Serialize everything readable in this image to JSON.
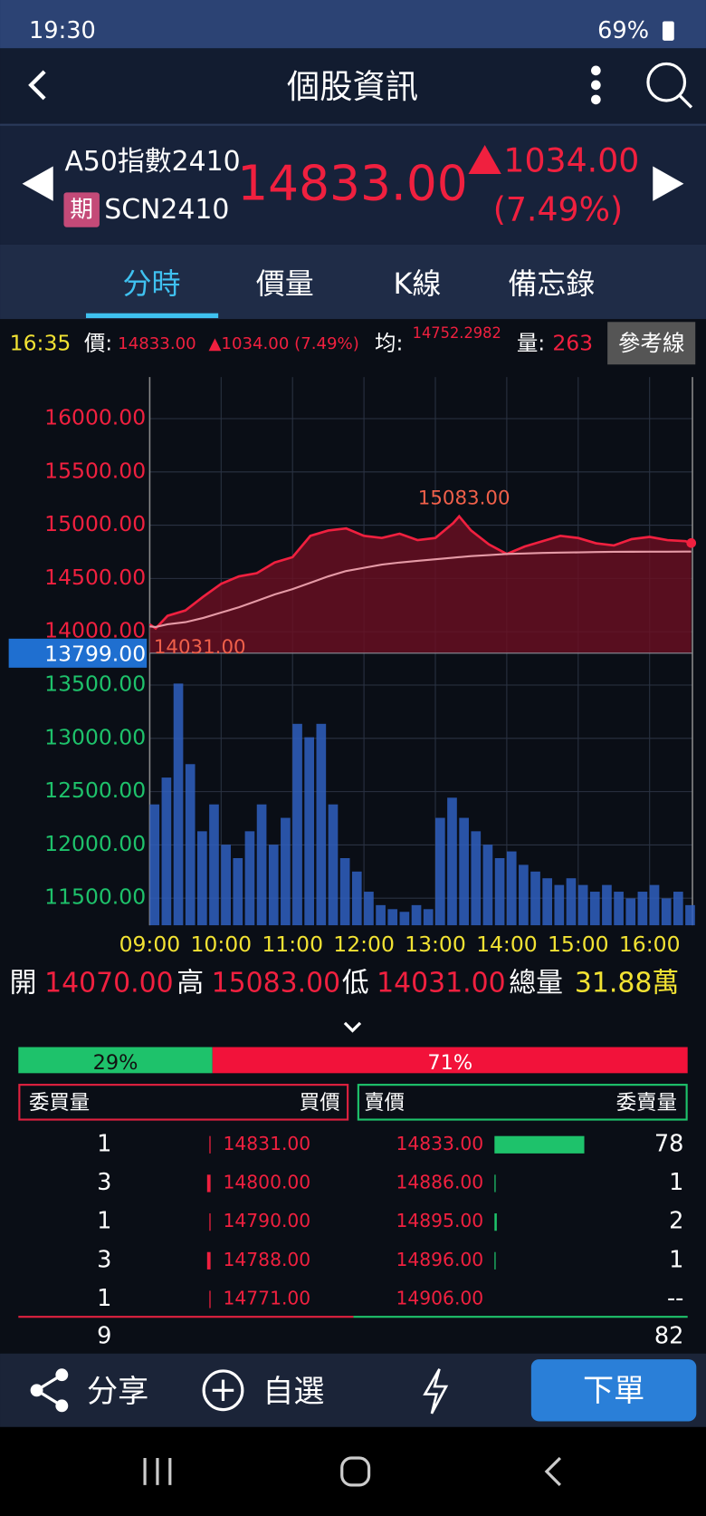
{
  "status_bar": {
    "time": "19:30",
    "battery": "69%"
  },
  "header": {
    "title": "個股資訊"
  },
  "quote": {
    "name": "A50指數2410",
    "badge": "期",
    "code": "SCN2410",
    "price": "14833.00",
    "change": "1034.00",
    "change_pct": "(7.49%)"
  },
  "tabs": [
    "分時",
    "價量",
    "K線",
    "備忘錄"
  ],
  "info_bar": {
    "time": "16:35",
    "price_label": "價:",
    "price": "14833.00",
    "change": "▲1034.00 (7.49%)",
    "avg_label": "均:",
    "avg": "14752.2982",
    "vol_label": "量:",
    "vol": "263",
    "button": "參考線"
  },
  "chart_data": [
    {
      "type": "line",
      "x": [
        "09:00",
        "09:05",
        "09:15",
        "09:30",
        "09:45",
        "10:00",
        "10:15",
        "10:30",
        "10:45",
        "11:00",
        "11:15",
        "11:30",
        "11:45",
        "12:00",
        "12:15",
        "12:30",
        "12:45",
        "13:00",
        "13:15",
        "13:20",
        "13:30",
        "13:45",
        "14:00",
        "14:15",
        "14:30",
        "14:45",
        "15:00",
        "15:15",
        "15:30",
        "15:45",
        "16:00",
        "16:15",
        "16:30",
        "16:35"
      ],
      "series": [
        {
          "name": "價",
          "color": "#f0203f",
          "values": [
            14070,
            14031,
            14150,
            14200,
            14330,
            14450,
            14520,
            14550,
            14650,
            14700,
            14900,
            14950,
            14970,
            14900,
            14880,
            14920,
            14860,
            14880,
            15020,
            15083,
            14950,
            14820,
            14730,
            14800,
            14850,
            14900,
            14880,
            14830,
            14810,
            14870,
            14890,
            14860,
            14850,
            14833
          ]
        },
        {
          "name": "均",
          "color": "#e59aa6",
          "values": [
            14050,
            14045,
            14070,
            14090,
            14130,
            14180,
            14230,
            14290,
            14350,
            14400,
            14460,
            14520,
            14570,
            14600,
            14630,
            14650,
            14665,
            14680,
            14695,
            14700,
            14710,
            14720,
            14730,
            14735,
            14740,
            14743,
            14745,
            14748,
            14750,
            14751,
            14752,
            14752,
            14752.2,
            14752.2982
          ]
        }
      ],
      "xlim": [
        "09:00",
        "16:36"
      ],
      "xticks": [
        "09:00",
        "10:00",
        "11:00",
        "12:00",
        "13:00",
        "14:00",
        "15:00",
        "16:00"
      ],
      "ylim": [
        11246,
        16390
      ],
      "yticks": [
        {
          "value": 11500,
          "label": "11500.00"
        },
        {
          "value": 12000,
          "label": "12000.00"
        },
        {
          "value": 12500,
          "label": "12500.00"
        },
        {
          "value": 13000,
          "label": "13000.00"
        },
        {
          "value": 13500,
          "label": "13500.00"
        },
        {
          "value": 14000,
          "label": "14000.00"
        },
        {
          "value": 14500,
          "label": "14500.00"
        },
        {
          "value": 15000,
          "label": "15000.00"
        },
        {
          "value": 15500,
          "label": "15500.00"
        },
        {
          "value": 16000,
          "label": "16000.00"
        }
      ],
      "reference": {
        "value": 13799,
        "label": "13799.00"
      },
      "max_label": {
        "x": "13:20",
        "value": 15083,
        "label": "15083.00"
      },
      "min_label": {
        "x": "09:05",
        "value": 14031,
        "label": "14031.00"
      },
      "grid": true
    },
    {
      "type": "bar",
      "color": "#2f5fc0",
      "x": [
        "09:00",
        "09:10",
        "09:20",
        "09:30",
        "09:40",
        "09:50",
        "10:00",
        "10:10",
        "10:20",
        "10:30",
        "10:40",
        "10:50",
        "11:00",
        "11:10",
        "11:20",
        "11:30",
        "11:40",
        "11:50",
        "12:00",
        "12:10",
        "12:20",
        "12:30",
        "12:40",
        "12:50",
        "13:00",
        "13:10",
        "13:20",
        "13:30",
        "13:40",
        "13:50",
        "14:00",
        "14:10",
        "14:20",
        "14:30",
        "14:40",
        "14:50",
        "15:00",
        "15:10",
        "15:20",
        "15:30",
        "15:40",
        "15:50",
        "16:00",
        "16:10",
        "16:20",
        "16:30"
      ],
      "values": [
        900,
        1100,
        1800,
        1200,
        700,
        900,
        600,
        500,
        700,
        900,
        600,
        800,
        1500,
        1400,
        1500,
        900,
        500,
        400,
        250,
        150,
        120,
        100,
        150,
        120,
        800,
        950,
        800,
        700,
        600,
        500,
        550,
        450,
        400,
        350,
        300,
        350,
        300,
        250,
        300,
        250,
        200,
        250,
        300,
        200,
        250,
        150
      ]
    }
  ],
  "ohlc": {
    "open_label": "開",
    "open": "14070.00",
    "high_label": "高",
    "high": "15083.00",
    "low_label": "低",
    "low": "14031.00",
    "vol_label": "總量",
    "vol": "31.88萬"
  },
  "ratio": {
    "buy": {
      "value": 29,
      "label": "29%"
    },
    "sell": {
      "value": 71,
      "label": "71%"
    }
  },
  "order_book": {
    "headers": [
      "委買量",
      "買價",
      "賣價",
      "委賣量"
    ],
    "rows": [
      {
        "bid_qty": 1,
        "bid": "14831.00",
        "ask": "14833.00",
        "ask_qty": 78
      },
      {
        "bid_qty": 3,
        "bid": "14800.00",
        "ask": "14886.00",
        "ask_qty": 1
      },
      {
        "bid_qty": 1,
        "bid": "14790.00",
        "ask": "14895.00",
        "ask_qty": 2
      },
      {
        "bid_qty": 3,
        "bid": "14788.00",
        "ask": "14896.00",
        "ask_qty": 1
      },
      {
        "bid_qty": 1,
        "bid": "14771.00",
        "ask": "14906.00",
        "ask_qty": "--"
      }
    ],
    "bid_total": 9,
    "ask_total": 82
  },
  "bottom_bar": {
    "share": "分享",
    "watch": "自選",
    "order": "下單"
  }
}
